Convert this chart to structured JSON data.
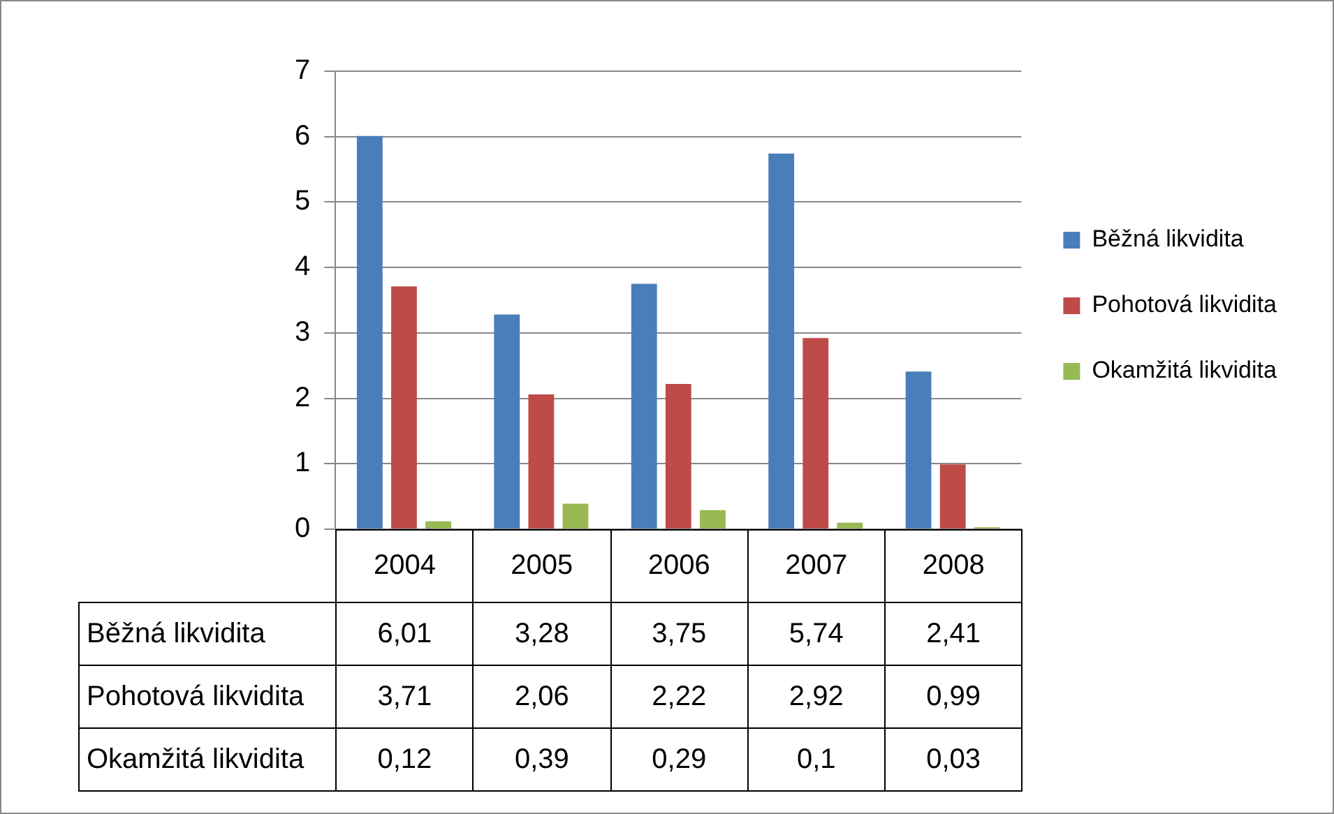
{
  "chart_data": {
    "type": "bar",
    "categories": [
      "2004",
      "2005",
      "2006",
      "2007",
      "2008"
    ],
    "series": [
      {
        "name": "Běžná likvidita",
        "color": "#4a7ebb",
        "values": [
          6.01,
          3.28,
          3.75,
          5.74,
          2.41
        ],
        "value_labels": [
          "6,01",
          "3,28",
          "3,75",
          "5,74",
          "2,41"
        ]
      },
      {
        "name": "Pohotová likvidita",
        "color": "#be4b48",
        "values": [
          3.71,
          2.06,
          2.22,
          2.92,
          0.99
        ],
        "value_labels": [
          "3,71",
          "2,06",
          "2,22",
          "2,92",
          "0,99"
        ]
      },
      {
        "name": "Okamžitá likvidita",
        "color": "#98b954",
        "values": [
          0.12,
          0.39,
          0.29,
          0.1,
          0.03
        ],
        "value_labels": [
          "0,12",
          "0,39",
          "0,29",
          "0,1",
          "0,03"
        ]
      }
    ],
    "ylim": [
      0,
      7
    ],
    "yticks": [
      0,
      1,
      2,
      3,
      4,
      5,
      6,
      7
    ],
    "grid": "y",
    "legend": "right"
  }
}
